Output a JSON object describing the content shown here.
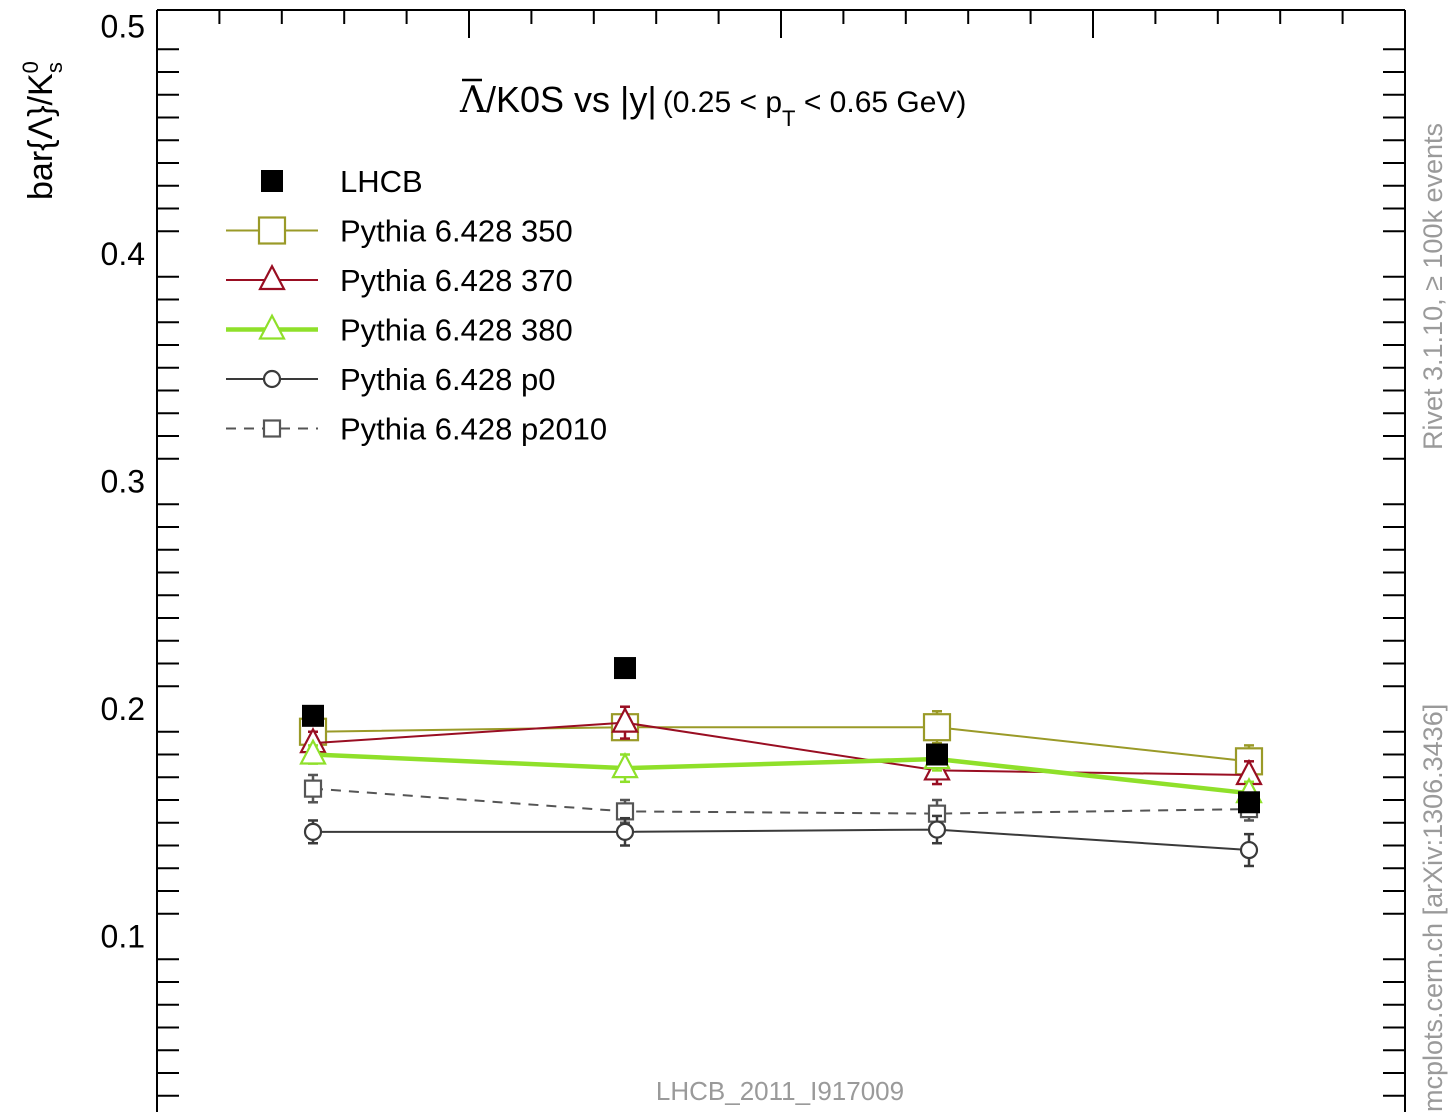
{
  "chart_data": {
    "type": "line",
    "title": "Λ/K0S vs |y|",
    "title_lambda": "Λ",
    "title_rest": "/K0S vs |y|",
    "title_range_pre": "(0.25 < p",
    "title_range_sub": "T",
    "title_range_post": " < 0.65 GeV)",
    "ylabel": "bar{Λ}/K",
    "ylabel_sup": "0",
    "ylabel_sub": "s",
    "ylim": [
      0.02,
      0.51
    ],
    "yticks": [
      "0.1",
      "0.2",
      "0.3",
      "0.4",
      "0.5"
    ],
    "x": [
      2.25,
      2.75,
      3.25,
      3.75
    ],
    "xlim": [
      2.0,
      4.0
    ],
    "grid": false,
    "legend_position": "top-left",
    "series": [
      {
        "name": "LHCB",
        "values": [
          0.197,
          0.218,
          0.18,
          0.159
        ],
        "color": "#000000",
        "marker": "filled-square",
        "line": "none"
      },
      {
        "name": "Pythia 6.428 350",
        "values": [
          0.19,
          0.192,
          0.192,
          0.177
        ],
        "errors": [
          0.005,
          0.005,
          0.007,
          0.007
        ],
        "color": "#9a9a28",
        "marker": "open-square",
        "line": "solid"
      },
      {
        "name": "Pythia 6.428 370",
        "values": [
          0.185,
          0.194,
          0.173,
          0.171
        ],
        "errors": [
          0.005,
          0.007,
          0.006,
          0.006
        ],
        "color": "#990e22",
        "marker": "open-triangle",
        "line": "solid"
      },
      {
        "name": "Pythia 6.428 380",
        "values": [
          0.18,
          0.174,
          0.178,
          0.163
        ],
        "errors": [
          0.004,
          0.006,
          0.005,
          0.005
        ],
        "color": "#8fe02a",
        "marker": "open-triangle",
        "line": "thick"
      },
      {
        "name": "Pythia 6.428 p0",
        "values": [
          0.146,
          0.146,
          0.147,
          0.138
        ],
        "errors": [
          0.005,
          0.006,
          0.006,
          0.007
        ],
        "color": "#3a3a3a",
        "marker": "open-circle",
        "line": "solid"
      },
      {
        "name": "Pythia 6.428 p2010",
        "values": [
          0.165,
          0.155,
          0.154,
          0.156
        ],
        "errors": [
          0.006,
          0.005,
          0.006,
          0.005
        ],
        "color": "#555555",
        "marker": "open-small-square",
        "line": "dashed"
      }
    ],
    "watermark": "LHCB_2011_I917009",
    "side_label_top": "Rivet 3.1.10, ≥ 100k events",
    "side_label_bottom": "mcplots.cern.ch [arXiv:1306.3436]"
  }
}
